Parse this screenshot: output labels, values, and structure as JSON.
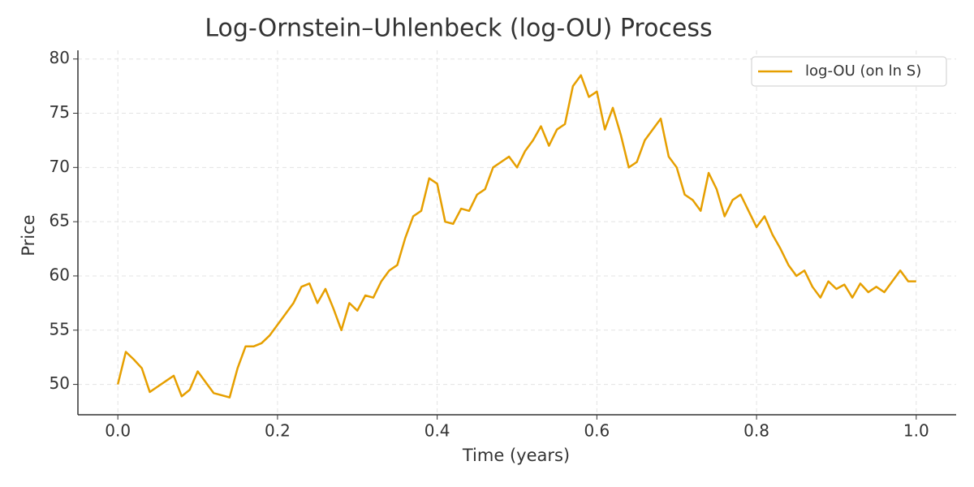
{
  "chart_data": {
    "type": "line",
    "title": "Log-Ornstein–Uhlenbeck (log-OU) Process",
    "x_label": "Time (years)",
    "y_label": "Price",
    "x": [
      0,
      0.01,
      0.02,
      0.03,
      0.04,
      0.05,
      0.06,
      0.07,
      0.08,
      0.09,
      0.1,
      0.11,
      0.12,
      0.13,
      0.14,
      0.15,
      0.16,
      0.17,
      0.18,
      0.19,
      0.2,
      0.21,
      0.22,
      0.23,
      0.24,
      0.25,
      0.26,
      0.27,
      0.28,
      0.29,
      0.3,
      0.31,
      0.32,
      0.33,
      0.34,
      0.35,
      0.36,
      0.37,
      0.38,
      0.39,
      0.4,
      0.41,
      0.42,
      0.43,
      0.44,
      0.45,
      0.46,
      0.47,
      0.48,
      0.49,
      0.5,
      0.51,
      0.52,
      0.53,
      0.54,
      0.55,
      0.56,
      0.57,
      0.58,
      0.59,
      0.6,
      0.61,
      0.62,
      0.63,
      0.64,
      0.65,
      0.66,
      0.67,
      0.68,
      0.69,
      0.7,
      0.71,
      0.72,
      0.73,
      0.74,
      0.75,
      0.76,
      0.77,
      0.78,
      0.79,
      0.8,
      0.81,
      0.82,
      0.83,
      0.84,
      0.85,
      0.86,
      0.87,
      0.88,
      0.89,
      0.9,
      0.91,
      0.92,
      0.93,
      0.94,
      0.95,
      0.96,
      0.97,
      0.98,
      0.99,
      1
    ],
    "series": [
      {
        "name": "log-OU (on ln S)",
        "color": "#E69F00",
        "values": [
          50.0,
          53.0,
          52.3,
          51.5,
          49.3,
          49.8,
          50.3,
          50.8,
          48.9,
          49.5,
          51.2,
          50.2,
          49.2,
          49.0,
          48.8,
          51.5,
          53.5,
          53.5,
          53.8,
          54.5,
          55.5,
          56.5,
          57.5,
          59.0,
          59.3,
          57.5,
          58.8,
          57.0,
          55.0,
          57.5,
          56.8,
          58.2,
          58.0,
          59.5,
          60.5,
          61.0,
          63.5,
          65.5,
          66.0,
          69.0,
          68.5,
          65.0,
          64.8,
          66.2,
          66.0,
          67.5,
          68.0,
          70.0,
          70.5,
          71.0,
          70.0,
          71.5,
          72.5,
          73.8,
          72.0,
          73.5,
          74.0,
          77.5,
          78.5,
          76.5,
          77.0,
          73.5,
          75.5,
          73.0,
          70.0,
          70.5,
          72.5,
          73.5,
          74.5,
          71.0,
          70.0,
          67.5,
          67.0,
          66.0,
          69.5,
          68.0,
          65.5,
          67.0,
          67.5,
          66.0,
          64.5,
          65.5,
          63.8,
          62.5,
          61.0,
          60.0,
          60.5,
          59.0,
          58.0,
          59.5,
          58.8,
          59.2,
          58.0,
          59.3,
          58.5,
          59.0,
          58.5,
          59.5,
          60.5,
          59.5,
          59.5
        ]
      }
    ],
    "xlim": [
      -0.05,
      1.05
    ],
    "ylim": [
      47.2,
      80.8
    ],
    "xticks": [
      {
        "value": 0,
        "label": "0.0"
      },
      0.2,
      0.4,
      0.6,
      0.8,
      {
        "value": 1,
        "label": "1.0"
      }
    ],
    "yticks": [
      50,
      55,
      60,
      65,
      70,
      75,
      80
    ],
    "grid": true,
    "legend": "upper right"
  }
}
